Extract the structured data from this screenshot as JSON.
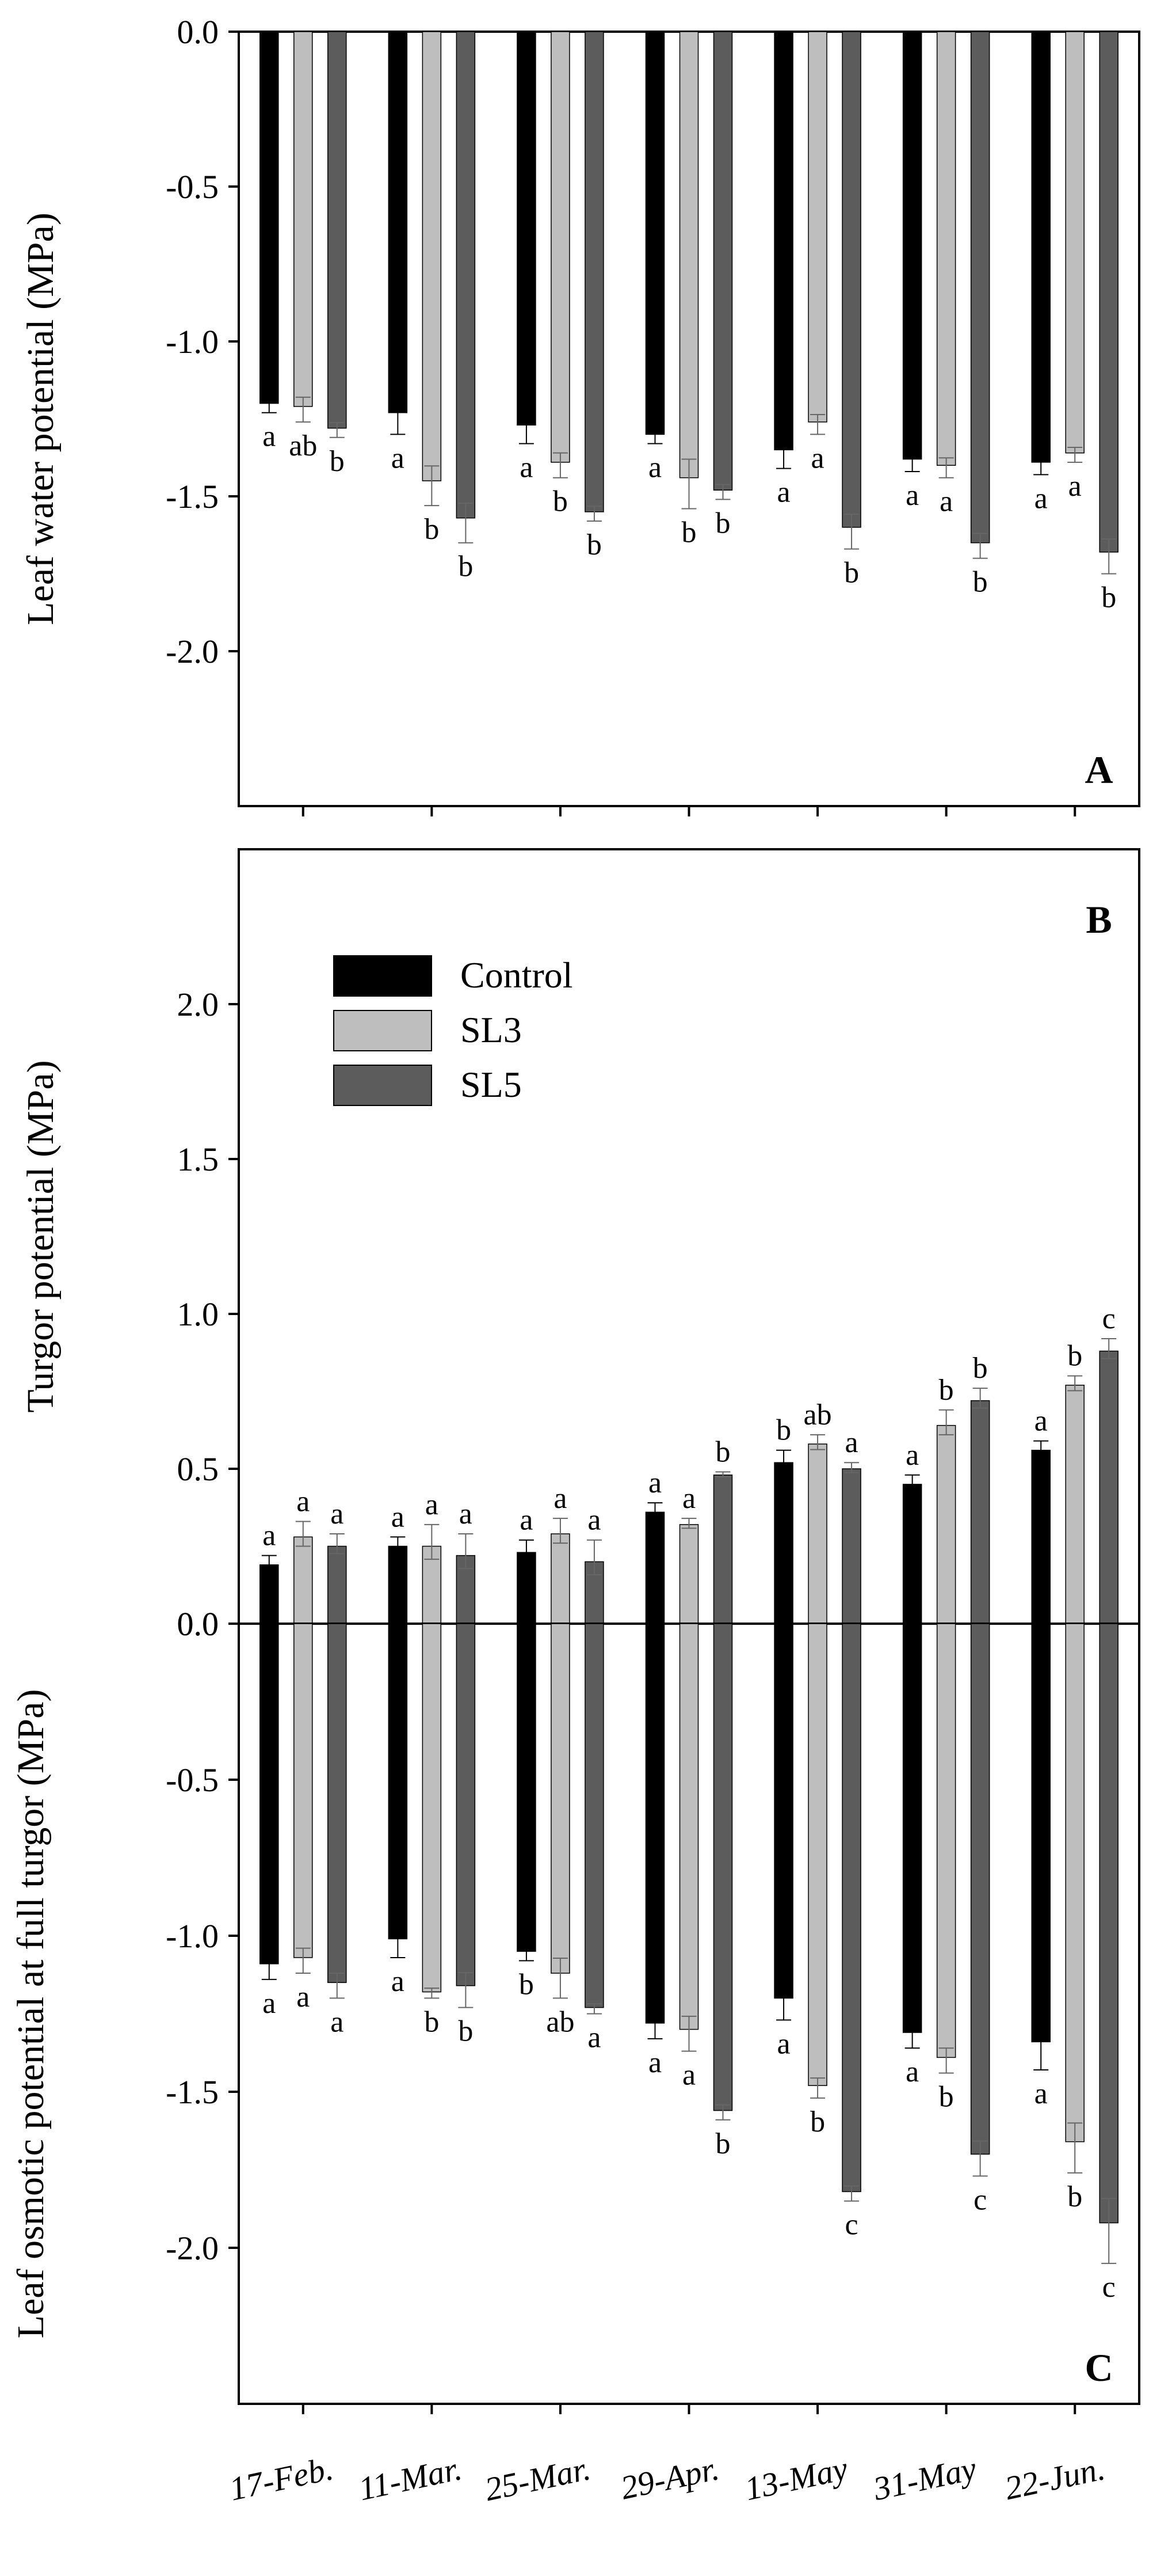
{
  "chart_data": [
    {
      "type": "bar",
      "panel_label": "A",
      "ylabel": "Leaf water potential (MPa)",
      "ylim": [
        -2.5,
        0.0
      ],
      "yticks": [
        "0.0",
        "-0.5",
        "-1.0",
        "-1.5",
        "-2.0"
      ],
      "ytick_values": [
        0.0,
        -0.5,
        -1.0,
        -1.5,
        -2.0
      ],
      "categories": [
        "17-Feb.",
        "11-Mar.",
        "25-Mar.",
        "29-Apr.",
        "13-May",
        "31-May",
        "22-Jun."
      ],
      "series": [
        {
          "name": "Control",
          "color": "#000000",
          "values": [
            -1.2,
            -1.23,
            -1.27,
            -1.3,
            -1.35,
            -1.38,
            -1.39
          ],
          "errors": [
            0.03,
            0.07,
            0.06,
            0.03,
            0.06,
            0.04,
            0.04
          ],
          "letters": [
            "a",
            "a",
            "a",
            "a",
            "a",
            "a",
            "a"
          ]
        },
        {
          "name": "SL3",
          "color": "#bebebe",
          "values": [
            -1.21,
            -1.45,
            -1.39,
            -1.44,
            -1.26,
            -1.4,
            -1.36
          ],
          "errors": [
            0.05,
            0.08,
            0.05,
            0.1,
            0.04,
            0.04,
            0.03
          ],
          "letters": [
            "ab",
            "b",
            "b",
            "b",
            "a",
            "a",
            "a"
          ]
        },
        {
          "name": "SL5",
          "color": "#5c5c5c",
          "values": [
            -1.28,
            -1.57,
            -1.55,
            -1.48,
            -1.6,
            -1.65,
            -1.68
          ],
          "errors": [
            0.03,
            0.08,
            0.03,
            0.03,
            0.07,
            0.05,
            0.07
          ],
          "letters": [
            "b",
            "b",
            "b",
            "b",
            "b",
            "b",
            "b"
          ]
        }
      ]
    },
    {
      "type": "bar",
      "panel_label": "B",
      "ylabel": "Turgor potential (MPa)",
      "ylim": [
        0.0,
        2.5
      ],
      "yticks": [
        "0.0",
        "0.5",
        "1.0",
        "1.5",
        "2.0"
      ],
      "ytick_values": [
        0.0,
        0.5,
        1.0,
        1.5,
        2.0
      ],
      "categories": [
        "17-Feb.",
        "11-Mar.",
        "25-Mar.",
        "29-Apr.",
        "13-May",
        "31-May",
        "22-Jun."
      ],
      "legend": [
        "Control",
        "SL3",
        "SL5"
      ],
      "legend_position": "upper-left",
      "series": [
        {
          "name": "Control",
          "color": "#000000",
          "values": [
            0.19,
            0.25,
            0.23,
            0.36,
            0.52,
            0.45,
            0.56
          ],
          "errors": [
            0.03,
            0.03,
            0.04,
            0.03,
            0.04,
            0.03,
            0.03
          ],
          "letters": [
            "a",
            "a",
            "a",
            "a",
            "b",
            "a",
            "a"
          ]
        },
        {
          "name": "SL3",
          "color": "#bebebe",
          "values": [
            0.28,
            0.25,
            0.29,
            0.32,
            0.58,
            0.64,
            0.77
          ],
          "errors": [
            0.05,
            0.07,
            0.05,
            0.02,
            0.03,
            0.05,
            0.03
          ],
          "letters": [
            "a",
            "a",
            "a",
            "a",
            "ab",
            "b",
            "b"
          ]
        },
        {
          "name": "SL5",
          "color": "#5c5c5c",
          "values": [
            0.25,
            0.22,
            0.2,
            0.48,
            0.5,
            0.72,
            0.88
          ],
          "errors": [
            0.04,
            0.07,
            0.07,
            0.01,
            0.02,
            0.04,
            0.04
          ],
          "letters": [
            "a",
            "a",
            "a",
            "b",
            "a",
            "b",
            "c"
          ]
        }
      ]
    },
    {
      "type": "bar",
      "panel_label": "C",
      "ylabel": "Leaf osmotic potential at full turgor (MPa)",
      "ylim": [
        -2.5,
        0.0
      ],
      "yticks": [
        "0.0",
        "-0.5",
        "-1.0",
        "-1.5",
        "-2.0"
      ],
      "ytick_values": [
        0.0,
        -0.5,
        -1.0,
        -1.5,
        -2.0
      ],
      "categories": [
        "17-Feb.",
        "11-Mar.",
        "25-Mar.",
        "29-Apr.",
        "13-May",
        "31-May",
        "22-Jun."
      ],
      "xtick_labels": [
        "17-Feb.",
        "11-Mar.",
        "25-Mar.",
        "29-Apr.",
        "13-May",
        "31-May",
        "22-Jun."
      ],
      "series": [
        {
          "name": "Control",
          "color": "#000000",
          "values": [
            -1.09,
            -1.01,
            -1.05,
            -1.28,
            -1.2,
            -1.31,
            -1.34
          ],
          "errors": [
            0.05,
            0.06,
            0.03,
            0.05,
            0.07,
            0.05,
            0.09
          ],
          "letters": [
            "a",
            "a",
            "b",
            "a",
            "a",
            "a",
            "a"
          ]
        },
        {
          "name": "SL3",
          "color": "#bebebe",
          "values": [
            -1.07,
            -1.18,
            -1.12,
            -1.3,
            -1.48,
            -1.39,
            -1.66
          ],
          "errors": [
            0.05,
            0.02,
            0.08,
            0.07,
            0.04,
            0.05,
            0.1
          ],
          "letters": [
            "a",
            "b",
            "ab",
            "a",
            "b",
            "b",
            "b"
          ]
        },
        {
          "name": "SL5",
          "color": "#5c5c5c",
          "values": [
            -1.15,
            -1.16,
            -1.23,
            -1.56,
            -1.82,
            -1.7,
            -1.92
          ],
          "errors": [
            0.05,
            0.07,
            0.02,
            0.03,
            0.03,
            0.07,
            0.13
          ],
          "letters": [
            "a",
            "b",
            "a",
            "b",
            "c",
            "c",
            "c"
          ]
        }
      ]
    }
  ]
}
